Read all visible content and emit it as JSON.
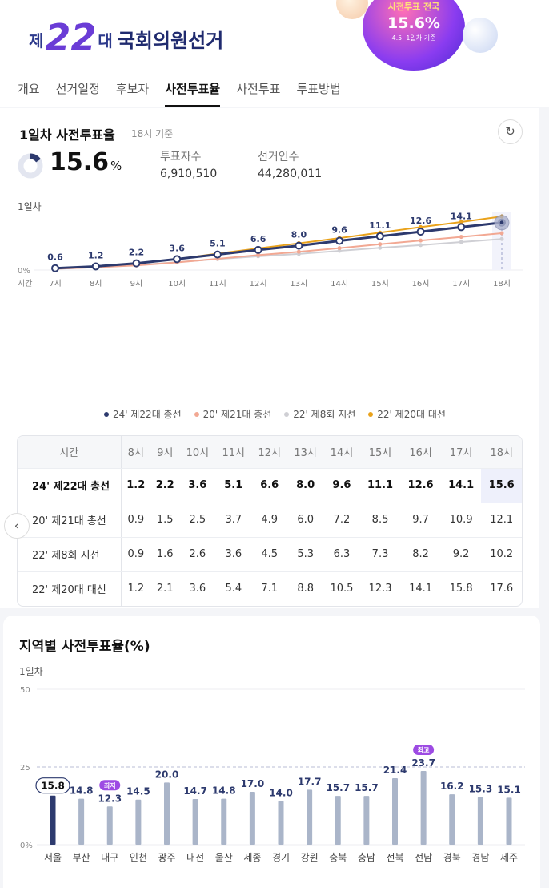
{
  "header": {
    "logo_je": "제",
    "logo_num": "22",
    "logo_dae": "대",
    "logo_title": "국회의원선거",
    "badge_line1": "사전투표 전국",
    "badge_value": "15.6%",
    "badge_line3": "4.5. 1일차 기준"
  },
  "nav": [
    "개요",
    "선거일정",
    "후보자",
    "사전투표율",
    "사전투표",
    "투표방법"
  ],
  "summary": {
    "title": "1일차 사전투표율",
    "subtitle": "18시 기준",
    "refresh_icon": "↻",
    "turnout": "15.6",
    "unit": "%",
    "voters_label": "투표자수",
    "voters": "6,910,510",
    "electors_label": "선거인수",
    "electors": "44,280,011",
    "day_label": "1일차"
  },
  "colors": {
    "s22": "#2d3a6e",
    "s21": "#f2a893",
    "s8": "#cfcfd4",
    "s20": "#e9a21b",
    "bar": "#aab5c9",
    "bar_hl": "#2d3a6e",
    "badge": "#9d4be3"
  },
  "chart_data": [
    {
      "type": "line",
      "xlabel": "시간",
      "ylabel": "",
      "ylim": [
        0,
        50
      ],
      "yticks": [
        "0%",
        "25",
        "50"
      ],
      "categories": [
        "7시",
        "8시",
        "9시",
        "10시",
        "11시",
        "12시",
        "13시",
        "14시",
        "15시",
        "16시",
        "17시",
        "18시"
      ],
      "series": [
        {
          "name": "24' 제22대 총선",
          "values": [
            0.6,
            1.2,
            2.2,
            3.6,
            5.1,
            6.6,
            8.0,
            9.6,
            11.1,
            12.6,
            14.1,
            15.6
          ]
        },
        {
          "name": "20' 제21대 총선",
          "values": [
            0.4,
            0.9,
            1.5,
            2.5,
            3.7,
            4.9,
            6.0,
            7.2,
            8.5,
            9.7,
            10.9,
            12.1
          ]
        },
        {
          "name": "22' 제8회 지선",
          "values": [
            0.4,
            0.9,
            1.6,
            2.6,
            3.6,
            4.5,
            5.3,
            6.3,
            7.3,
            8.2,
            9.2,
            10.2
          ]
        },
        {
          "name": "22' 제20대 대선",
          "values": [
            0.5,
            1.2,
            2.1,
            3.6,
            5.4,
            7.1,
            8.8,
            10.5,
            12.3,
            14.1,
            15.8,
            17.6
          ]
        }
      ],
      "labels": [
        "0.6",
        "1.2",
        "2.2",
        "3.6",
        "5.1",
        "6.6",
        "8.0",
        "9.6",
        "11.1",
        "12.6",
        "14.1",
        "15.6"
      ],
      "legend_position": "bottom",
      "grid": true
    },
    {
      "type": "bar",
      "title": "지역별 사전투표율(%)",
      "ylim": [
        0,
        50
      ],
      "yticks": [
        "0%",
        "25",
        "50"
      ],
      "categories": [
        "서울",
        "부산",
        "대구",
        "인천",
        "광주",
        "대전",
        "울산",
        "세종",
        "경기",
        "강원",
        "충북",
        "충남",
        "전북",
        "전남",
        "경북",
        "경남",
        "제주"
      ],
      "values": [
        15.8,
        14.8,
        12.3,
        14.5,
        20.0,
        14.7,
        14.8,
        17.0,
        14.0,
        17.7,
        15.7,
        15.7,
        21.4,
        23.7,
        16.2,
        15.3,
        15.1
      ],
      "min_badge": "최저",
      "max_badge": "최고",
      "grid": true
    }
  ],
  "table": {
    "header_label": "시간",
    "hours": [
      "8시",
      "9시",
      "10시",
      "11시",
      "12시",
      "13시",
      "14시",
      "15시",
      "16시",
      "17시",
      "18시"
    ],
    "rows": [
      {
        "label": "24' 제22대 총선",
        "values": [
          "1.2",
          "2.2",
          "3.6",
          "5.1",
          "6.6",
          "8.0",
          "9.6",
          "11.1",
          "12.6",
          "14.1",
          "15.6"
        ]
      },
      {
        "label": "20' 제21대 총선",
        "values": [
          "0.9",
          "1.5",
          "2.5",
          "3.7",
          "4.9",
          "6.0",
          "7.2",
          "8.5",
          "9.7",
          "10.9",
          "12.1"
        ]
      },
      {
        "label": "22' 제8회 지선",
        "values": [
          "0.9",
          "1.6",
          "2.6",
          "3.6",
          "4.5",
          "5.3",
          "6.3",
          "7.3",
          "8.2",
          "9.2",
          "10.2"
        ]
      },
      {
        "label": "22' 제20대 대선",
        "values": [
          "1.2",
          "2.1",
          "3.6",
          "5.4",
          "7.1",
          "8.8",
          "10.5",
          "12.3",
          "14.1",
          "15.8",
          "17.6"
        ]
      }
    ],
    "prev_icon": "‹"
  },
  "region": {
    "title": "지역별 사전투표율(%)",
    "day_label": "1일차"
  }
}
